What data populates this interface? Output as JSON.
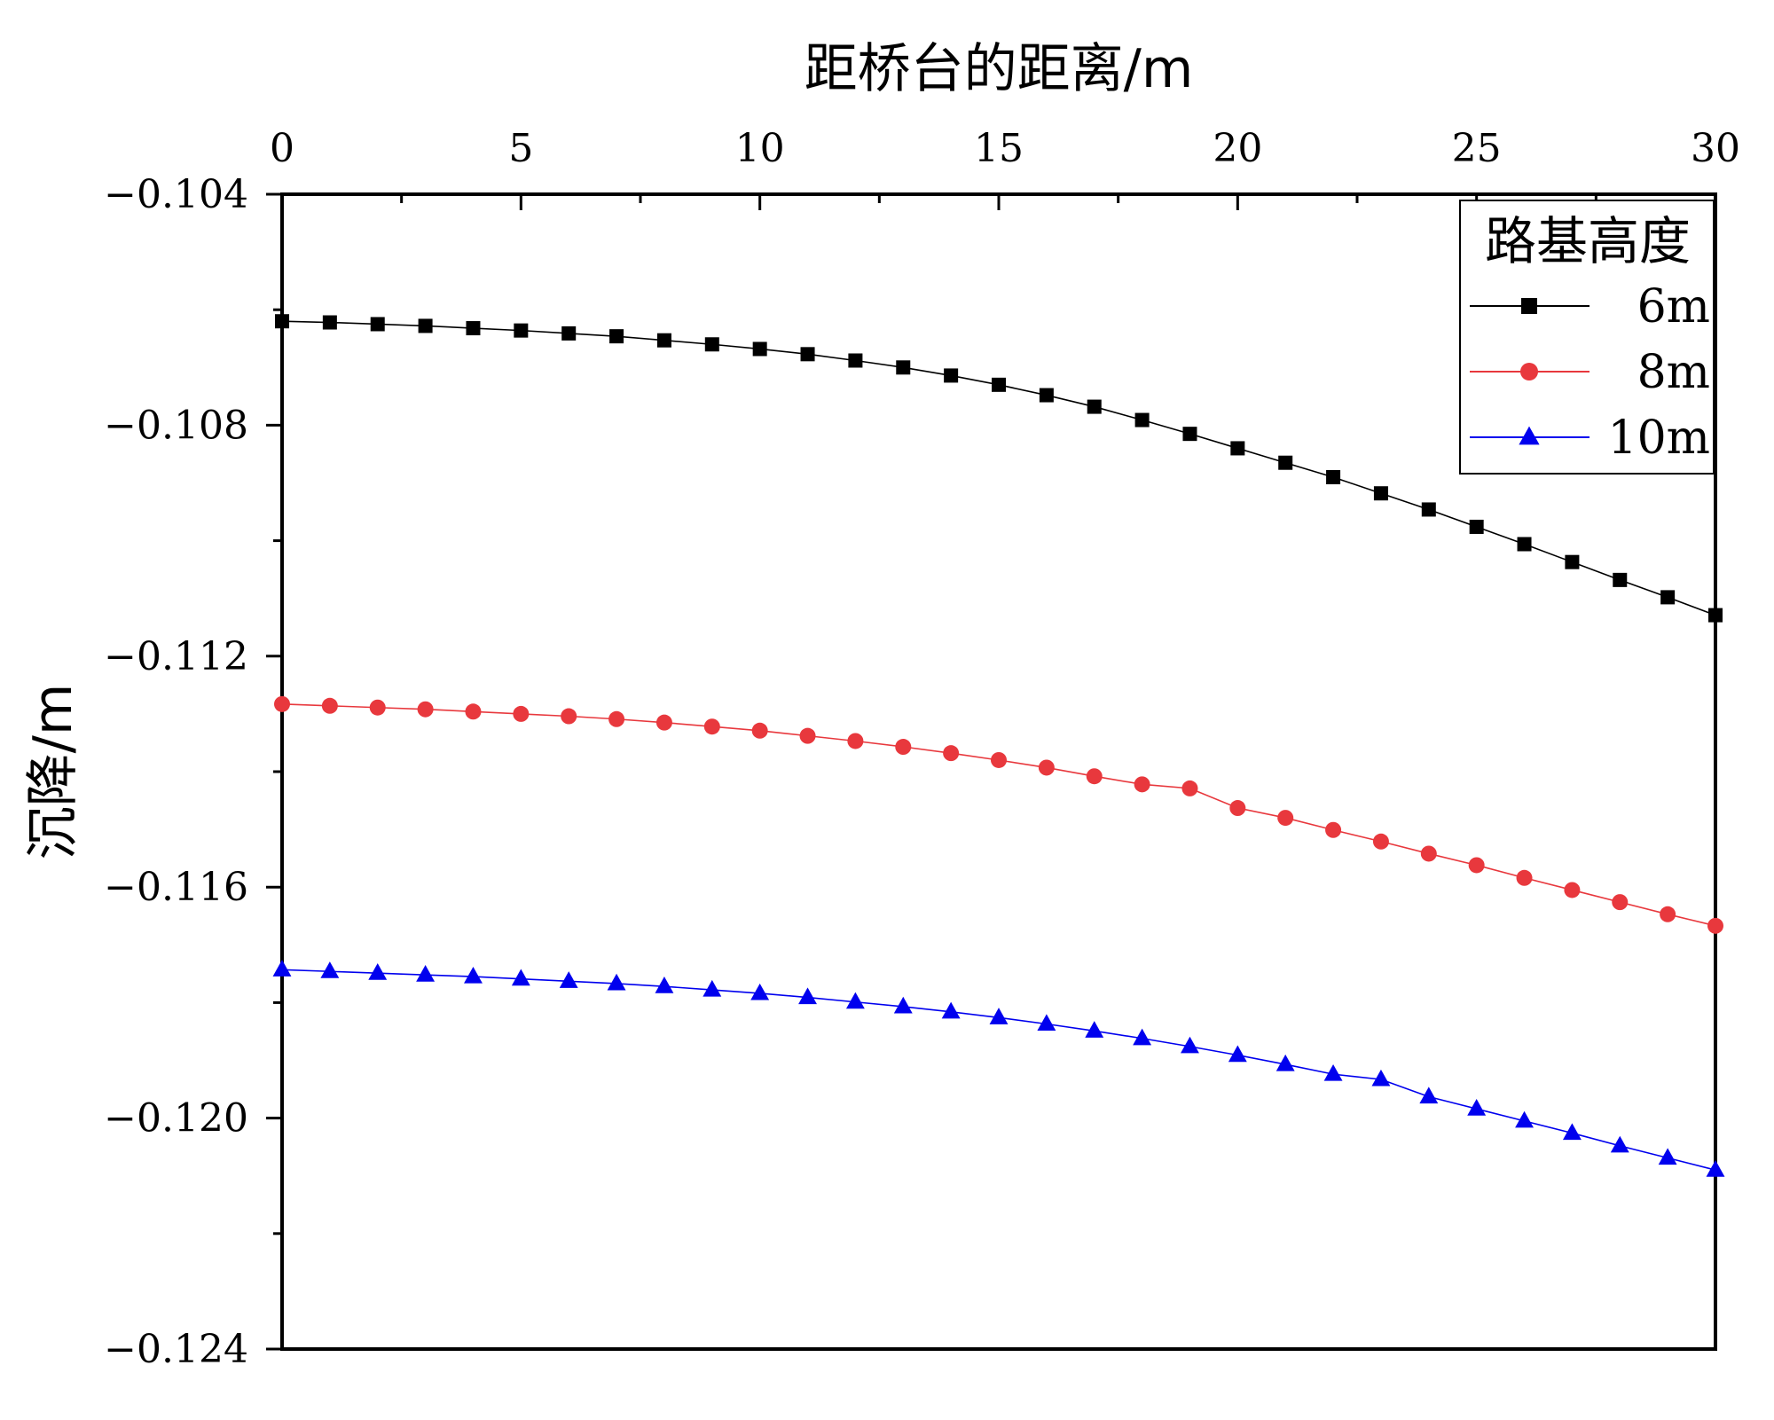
{
  "chart_data": {
    "type": "line",
    "title": "",
    "xlabel": "距桥台的距离/m",
    "ylabel": "沉降/m",
    "xlim": [
      0,
      30
    ],
    "ylim": [
      -0.124,
      -0.104
    ],
    "xticks": [
      "0",
      "5",
      "10",
      "15",
      "20",
      "25",
      "30"
    ],
    "yticks": [
      "-0.104",
      "-0.108",
      "-0.112",
      "-0.116",
      "-0.120",
      "-0.124"
    ],
    "x_axis_position": "top",
    "grid": false,
    "legend_title": "路基高度",
    "legend_position": "top-right",
    "x": [
      0,
      1,
      2,
      3,
      4,
      5,
      6,
      7,
      8,
      9,
      10,
      11,
      12,
      13,
      14,
      15,
      16,
      17,
      18,
      19,
      20,
      21,
      22,
      23,
      24,
      25,
      26,
      27,
      28,
      29,
      30
    ],
    "series": [
      {
        "name": "6m",
        "color": "#000000",
        "marker": "square",
        "values": [
          -0.1062,
          -0.10622,
          -0.10625,
          -0.10628,
          -0.10632,
          -0.10636,
          -0.10641,
          -0.10646,
          -0.10653,
          -0.1066,
          -0.10668,
          -0.10677,
          -0.10688,
          -0.107,
          -0.10714,
          -0.1073,
          -0.10748,
          -0.10768,
          -0.10791,
          -0.10815,
          -0.1084,
          -0.10865,
          -0.1089,
          -0.10918,
          -0.10946,
          -0.10976,
          -0.11006,
          -0.11037,
          -0.11068,
          -0.11098,
          -0.11129
        ]
      },
      {
        "name": "8m",
        "color": "#e8383d",
        "marker": "circle",
        "values": [
          -0.11283,
          -0.11286,
          -0.11289,
          -0.11292,
          -0.11296,
          -0.113,
          -0.11304,
          -0.11309,
          -0.11315,
          -0.11322,
          -0.11329,
          -0.11338,
          -0.11347,
          -0.11357,
          -0.11368,
          -0.1138,
          -0.11393,
          -0.11408,
          -0.11422,
          -0.11429,
          -0.11463,
          -0.1148,
          -0.11501,
          -0.11521,
          -0.11542,
          -0.11562,
          -0.11584,
          -0.11605,
          -0.11626,
          -0.11647,
          -0.11667
        ]
      },
      {
        "name": "10m",
        "color": "#0000ee",
        "marker": "triangle",
        "values": [
          -0.11743,
          -0.11746,
          -0.11749,
          -0.11752,
          -0.11755,
          -0.11759,
          -0.11763,
          -0.11767,
          -0.11772,
          -0.11778,
          -0.11784,
          -0.11791,
          -0.11799,
          -0.11807,
          -0.11816,
          -0.11826,
          -0.11837,
          -0.11849,
          -0.11862,
          -0.11876,
          -0.11891,
          -0.11907,
          -0.11924,
          -0.11933,
          -0.11963,
          -0.11984,
          -0.12005,
          -0.12026,
          -0.12048,
          -0.12069,
          -0.1209
        ]
      }
    ]
  }
}
